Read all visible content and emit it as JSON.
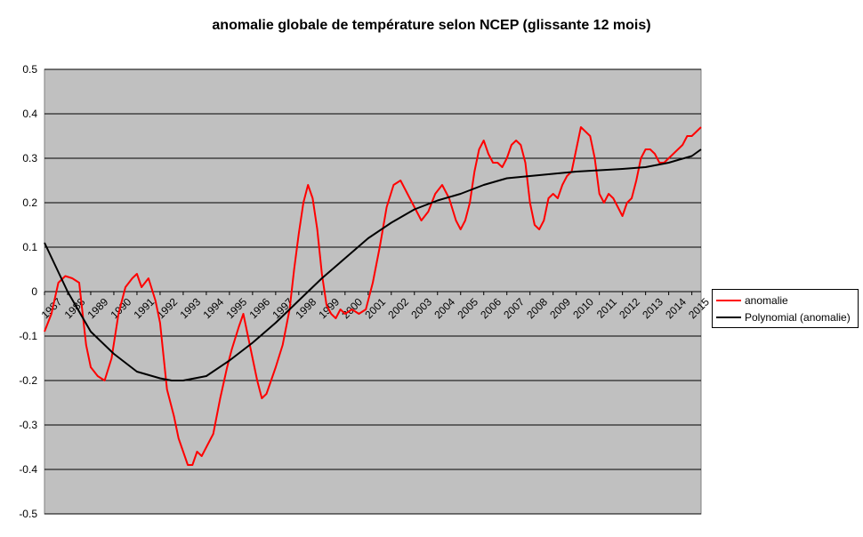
{
  "chart_data": {
    "type": "line",
    "title": "anomalie globale de température selon NCEP (glissante 12 mois)",
    "xlabel": "",
    "ylabel": "",
    "ylim": [
      -0.5,
      0.5
    ],
    "yticks": [
      "0.5",
      "0.4",
      "0.3",
      "0.2",
      "0.1",
      "0",
      "-0.1",
      "-0.2",
      "-0.3",
      "-0.4",
      "-0.5"
    ],
    "xlim": [
      1987,
      2015.4
    ],
    "xticks": [
      "1987",
      "1988",
      "1989",
      "1990",
      "1991",
      "1992",
      "1993",
      "1994",
      "1995",
      "1996",
      "1997",
      "1998",
      "1999",
      "2000",
      "2001",
      "2002",
      "2003",
      "2004",
      "2005",
      "2006",
      "2007",
      "2008",
      "2009",
      "2010",
      "2011",
      "2012",
      "2013",
      "2014",
      "2015"
    ],
    "grid": true,
    "legend_position": "right",
    "background": "#c0c0c0",
    "series": [
      {
        "name": "anomalie",
        "color": "#ff0000",
        "x": [
          1987.0,
          1987.3,
          1987.6,
          1987.9,
          1988.2,
          1988.5,
          1988.8,
          1989.0,
          1989.3,
          1989.6,
          1989.9,
          1990.2,
          1990.5,
          1990.8,
          1991.0,
          1991.2,
          1991.5,
          1991.8,
          1992.0,
          1992.3,
          1992.6,
          1992.8,
          1993.0,
          1993.2,
          1993.4,
          1993.6,
          1993.8,
          1994.0,
          1994.3,
          1994.6,
          1994.9,
          1995.1,
          1995.4,
          1995.6,
          1995.8,
          1996.0,
          1996.2,
          1996.4,
          1996.6,
          1996.8,
          1997.0,
          1997.3,
          1997.6,
          1997.8,
          1998.0,
          1998.2,
          1998.4,
          1998.6,
          1998.8,
          1999.0,
          1999.2,
          1999.4,
          1999.6,
          1999.8,
          2000.0,
          2000.3,
          2000.6,
          2000.9,
          2001.2,
          2001.5,
          2001.8,
          2002.1,
          2002.4,
          2002.7,
          2003.0,
          2003.3,
          2003.6,
          2003.9,
          2004.2,
          2004.5,
          2004.8,
          2005.0,
          2005.2,
          2005.4,
          2005.6,
          2005.8,
          2006.0,
          2006.2,
          2006.4,
          2006.6,
          2006.8,
          2007.0,
          2007.2,
          2007.4,
          2007.6,
          2007.8,
          2008.0,
          2008.2,
          2008.4,
          2008.6,
          2008.8,
          2009.0,
          2009.2,
          2009.4,
          2009.6,
          2009.8,
          2010.0,
          2010.2,
          2010.4,
          2010.6,
          2010.8,
          2011.0,
          2011.2,
          2011.4,
          2011.6,
          2011.8,
          2012.0,
          2012.2,
          2012.4,
          2012.6,
          2012.8,
          2013.0,
          2013.2,
          2013.4,
          2013.6,
          2013.8,
          2014.0,
          2014.2,
          2014.4,
          2014.6,
          2014.8,
          2015.0,
          2015.2,
          2015.4
        ],
        "y": [
          -0.09,
          -0.05,
          0.02,
          0.035,
          0.03,
          0.02,
          -0.12,
          -0.17,
          -0.19,
          -0.2,
          -0.15,
          -0.05,
          0.01,
          0.03,
          0.04,
          0.01,
          0.03,
          -0.02,
          -0.07,
          -0.22,
          -0.28,
          -0.33,
          -0.36,
          -0.39,
          -0.39,
          -0.36,
          -0.37,
          -0.35,
          -0.32,
          -0.24,
          -0.17,
          -0.13,
          -0.08,
          -0.05,
          -0.1,
          -0.15,
          -0.2,
          -0.24,
          -0.23,
          -0.2,
          -0.17,
          -0.12,
          -0.04,
          0.05,
          0.13,
          0.2,
          0.24,
          0.21,
          0.14,
          0.04,
          -0.03,
          -0.05,
          -0.06,
          -0.04,
          -0.05,
          -0.04,
          -0.05,
          -0.04,
          0.02,
          0.1,
          0.19,
          0.24,
          0.25,
          0.22,
          0.19,
          0.16,
          0.18,
          0.22,
          0.24,
          0.21,
          0.16,
          0.14,
          0.16,
          0.2,
          0.27,
          0.32,
          0.34,
          0.31,
          0.29,
          0.29,
          0.28,
          0.3,
          0.33,
          0.34,
          0.33,
          0.29,
          0.2,
          0.15,
          0.14,
          0.16,
          0.21,
          0.22,
          0.21,
          0.24,
          0.26,
          0.27,
          0.32,
          0.37,
          0.36,
          0.35,
          0.3,
          0.22,
          0.2,
          0.22,
          0.21,
          0.19,
          0.17,
          0.2,
          0.21,
          0.25,
          0.3,
          0.32,
          0.32,
          0.31,
          0.29,
          0.29,
          0.3,
          0.31,
          0.32,
          0.33,
          0.35,
          0.35,
          0.36,
          0.37
        ]
      },
      {
        "name": "Polynomial (anomalie)",
        "color": "#000000",
        "x": [
          1987.0,
          1988.0,
          1989.0,
          1990.0,
          1991.0,
          1992.0,
          1992.5,
          1993.0,
          1994.0,
          1995.0,
          1996.0,
          1997.0,
          1998.0,
          1999.0,
          2000.0,
          2001.0,
          2002.0,
          2003.0,
          2004.0,
          2005.0,
          2006.0,
          2007.0,
          2008.0,
          2009.0,
          2010.0,
          2011.0,
          2012.0,
          2013.0,
          2014.0,
          2015.0,
          2015.4
        ],
        "y": [
          0.11,
          0.0,
          -0.09,
          -0.14,
          -0.18,
          -0.195,
          -0.2,
          -0.2,
          -0.19,
          -0.155,
          -0.115,
          -0.07,
          -0.02,
          0.03,
          0.075,
          0.12,
          0.155,
          0.185,
          0.205,
          0.22,
          0.24,
          0.255,
          0.26,
          0.265,
          0.27,
          0.273,
          0.276,
          0.28,
          0.29,
          0.305,
          0.32
        ]
      }
    ]
  }
}
